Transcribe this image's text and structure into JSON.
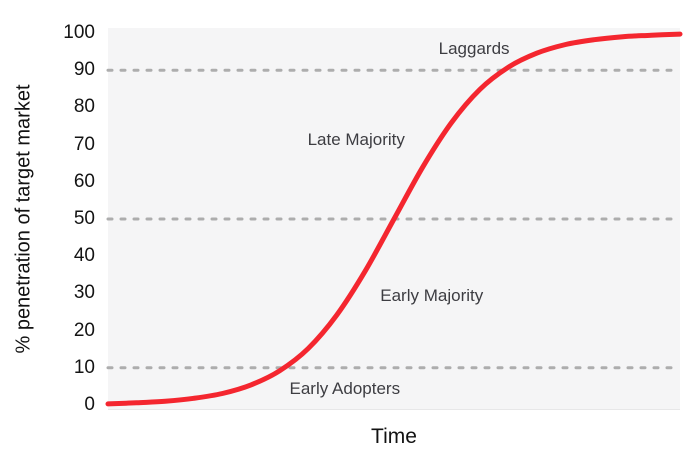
{
  "chart_data": {
    "type": "line",
    "title": "",
    "xlabel": "Time",
    "ylabel": "% penetration of target market",
    "x_domain": [
      0,
      100
    ],
    "ylim": [
      0,
      100
    ],
    "y_ticks": [
      0,
      10,
      20,
      30,
      40,
      50,
      60,
      70,
      80,
      90,
      100
    ],
    "x_tick_labels": "none (qualitative time axis)",
    "grid": "horizontal dashed lines at 10, 50 and 90 only",
    "dashed_gridlines_at": [
      10,
      50,
      90
    ],
    "legend_position": "none",
    "series": [
      {
        "name": "market-penetration-s-curve",
        "description": "logistic adoption curve, midpoint at 50% penetration",
        "x": [
          0,
          5,
          10,
          15,
          20,
          25,
          30,
          35,
          40,
          45,
          50,
          55,
          60,
          65,
          70,
          75,
          80,
          85,
          90,
          95,
          100
        ],
        "values": [
          0.3,
          0.6,
          1.0,
          1.8,
          3.1,
          5.4,
          9.2,
          15.2,
          24.2,
          36.1,
          50,
          63.9,
          75.8,
          84.8,
          90.8,
          94.6,
          96.9,
          98.2,
          99.0,
          99.4,
          99.7
        ]
      }
    ],
    "annotations": [
      {
        "label": "Laggards",
        "x": 64.0,
        "y": 95.7
      },
      {
        "label": "Late Majority",
        "x": 43.4,
        "y": 71.2
      },
      {
        "label": "Early Majority",
        "x": 56.6,
        "y": 29.3
      },
      {
        "label": "Early Adopters",
        "x": 41.4,
        "y": 4.3
      }
    ]
  },
  "colors": {
    "curve": "#f4262f",
    "plot_background": "#f5f5f6",
    "gridline": "#adadad",
    "tick_text": "#141414",
    "annotation_text": "#3d3d42",
    "axis_title_text": "#121212"
  }
}
